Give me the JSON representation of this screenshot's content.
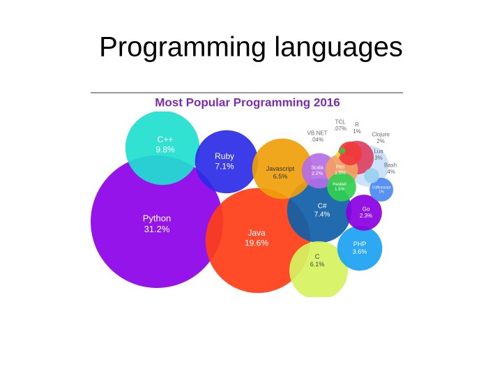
{
  "slide_title": "Programming languages",
  "chart_data": {
    "type": "bubble",
    "title": "Most Popular Programming 2016",
    "categories": [
      "Python",
      "Java",
      "C++",
      "C#",
      "Ruby",
      "Javascript",
      "C",
      "PHP",
      "Lua",
      "Go",
      "Scala",
      "Clojure",
      "Perl",
      "Haskell",
      "Coffeescript",
      "R",
      "Bash",
      "TCL",
      "VB.NET"
    ],
    "values": [
      31.2,
      19.6,
      9.8,
      7.4,
      7.1,
      6.5,
      6.1,
      3.6,
      3,
      2.3,
      2.2,
      2,
      1.9,
      1.5,
      1,
      1,
      0.4,
      0.07,
      0.04
    ],
    "value_labels": [
      "31.2%",
      "19.6%",
      "9.8%",
      "7.4%",
      "7.1%",
      "6.5%",
      "6.1%",
      "3.6%",
      "3%",
      "2.3%",
      "2.2%",
      "2%",
      "1.9%",
      "1.5%",
      "1%",
      "1%",
      ".4%",
      ".07%",
      ".04%"
    ],
    "colors": [
      "#8b00e8",
      "#ff3d16",
      "#1fe0cf",
      "#0f5ea8",
      "#2b2be6",
      "#f0a00a",
      "#d6f25e",
      "#1ba2f2",
      "#c8e0f8",
      "#8a00e0",
      "#b46ee6",
      "#e04060",
      "#f2a062",
      "#30d050",
      "#4a8af2",
      "#f03a3a",
      "#9ad0f0",
      "#40c040",
      "#f0e020"
    ]
  }
}
